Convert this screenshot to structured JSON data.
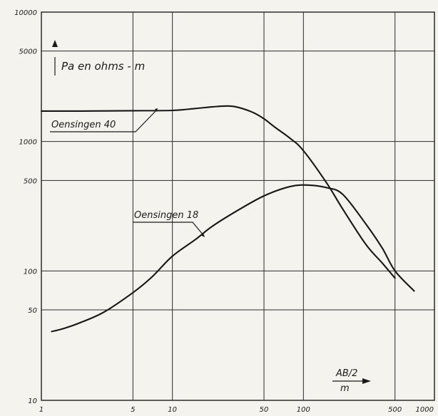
{
  "chart_data": {
    "type": "line",
    "x_scale": "log",
    "y_scale": "log",
    "xlim": [
      1,
      1000
    ],
    "ylim": [
      10,
      10000
    ],
    "x_ticks": [
      {
        "v": 1,
        "label": "1"
      },
      {
        "v": 5,
        "label": "5"
      },
      {
        "v": 10,
        "label": "10"
      },
      {
        "v": 50,
        "label": "50"
      },
      {
        "v": 100,
        "label": "100"
      },
      {
        "v": 500,
        "label": "500"
      },
      {
        "v": 1000,
        "label": "1000"
      }
    ],
    "y_ticks": [
      {
        "v": 10,
        "label": "10"
      },
      {
        "v": 50,
        "label": "50"
      },
      {
        "v": 100,
        "label": "100"
      },
      {
        "v": 500,
        "label": "500"
      },
      {
        "v": 1000,
        "label": "1000"
      },
      {
        "v": 5000,
        "label": "5000"
      },
      {
        "v": 10000,
        "label": "10000"
      }
    ],
    "grid_lines": [
      10,
      100,
      1000
    ],
    "ylabel": "Pa en ohms - m",
    "xlabel": "AB/2",
    "xunit": "m",
    "series": [
      {
        "name": "Oensingen 40",
        "values": [
          [
            1,
            1720
          ],
          [
            2,
            1720
          ],
          [
            5,
            1730
          ],
          [
            10,
            1740
          ],
          [
            15,
            1800
          ],
          [
            20,
            1850
          ],
          [
            25,
            1880
          ],
          [
            30,
            1860
          ],
          [
            40,
            1700
          ],
          [
            50,
            1500
          ],
          [
            60,
            1300
          ],
          [
            80,
            1050
          ],
          [
            100,
            850
          ],
          [
            150,
            480
          ],
          [
            200,
            300
          ],
          [
            300,
            160
          ],
          [
            400,
            115
          ],
          [
            500,
            88
          ]
        ]
      },
      {
        "name": "Oensingen 18",
        "values": [
          [
            1.2,
            34
          ],
          [
            1.5,
            36
          ],
          [
            2,
            40
          ],
          [
            3,
            48
          ],
          [
            5,
            68
          ],
          [
            7,
            90
          ],
          [
            10,
            130
          ],
          [
            15,
            175
          ],
          [
            20,
            220
          ],
          [
            30,
            285
          ],
          [
            50,
            380
          ],
          [
            80,
            450
          ],
          [
            110,
            460
          ],
          [
            150,
            440
          ],
          [
            200,
            390
          ],
          [
            300,
            230
          ],
          [
            400,
            150
          ],
          [
            500,
            100
          ],
          [
            700,
            70
          ]
        ]
      }
    ]
  }
}
